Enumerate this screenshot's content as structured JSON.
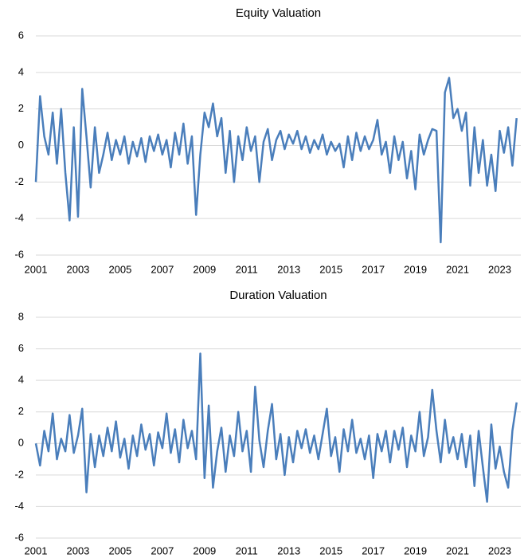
{
  "chart_data": [
    {
      "type": "line",
      "title": "Equity Valuation",
      "x": [
        2001.0,
        2001.2,
        2001.4,
        2001.6,
        2001.8,
        2002.0,
        2002.2,
        2002.4,
        2002.6,
        2002.8,
        2003.0,
        2003.2,
        2003.4,
        2003.6,
        2003.8,
        2004.0,
        2004.2,
        2004.4,
        2004.6,
        2004.8,
        2005.0,
        2005.2,
        2005.4,
        2005.6,
        2005.8,
        2006.0,
        2006.2,
        2006.4,
        2006.6,
        2006.8,
        2007.0,
        2007.2,
        2007.4,
        2007.6,
        2007.8,
        2008.0,
        2008.2,
        2008.4,
        2008.6,
        2008.8,
        2009.0,
        2009.2,
        2009.4,
        2009.6,
        2009.8,
        2010.0,
        2010.2,
        2010.4,
        2010.6,
        2010.8,
        2011.0,
        2011.2,
        2011.4,
        2011.6,
        2011.8,
        2012.0,
        2012.2,
        2012.4,
        2012.6,
        2012.8,
        2013.0,
        2013.2,
        2013.4,
        2013.6,
        2013.8,
        2014.0,
        2014.2,
        2014.4,
        2014.6,
        2014.8,
        2015.0,
        2015.2,
        2015.4,
        2015.6,
        2015.8,
        2016.0,
        2016.2,
        2016.4,
        2016.6,
        2016.8,
        2017.0,
        2017.2,
        2017.4,
        2017.6,
        2017.8,
        2018.0,
        2018.2,
        2018.4,
        2018.6,
        2018.8,
        2019.0,
        2019.2,
        2019.4,
        2019.6,
        2019.8,
        2020.0,
        2020.2,
        2020.4,
        2020.6,
        2020.8,
        2021.0,
        2021.2,
        2021.4,
        2021.6,
        2021.8,
        2022.0,
        2022.2,
        2022.4,
        2022.6,
        2022.8,
        2023.0,
        2023.2,
        2023.4,
        2023.6,
        2023.8
      ],
      "series": [
        {
          "color": "#4a7ebb",
          "values": [
            -2.0,
            2.7,
            0.5,
            -0.5,
            1.8,
            -1.0,
            2.0,
            -1.5,
            -4.1,
            1.0,
            -3.9,
            3.1,
            0.5,
            -2.3,
            1.0,
            -1.5,
            -0.5,
            0.7,
            -0.8,
            0.3,
            -0.5,
            0.5,
            -1.0,
            0.2,
            -0.6,
            0.4,
            -0.9,
            0.5,
            -0.3,
            0.6,
            -0.5,
            0.3,
            -1.2,
            0.7,
            -0.5,
            1.2,
            -1.0,
            0.5,
            -3.8,
            -0.5,
            1.8,
            1.0,
            2.3,
            0.5,
            1.5,
            -1.5,
            0.8,
            -2.0,
            0.5,
            -0.8,
            1.0,
            -0.3,
            0.5,
            -2.0,
            0.2,
            0.9,
            -0.8,
            0.3,
            0.8,
            -0.2,
            0.6,
            0.1,
            0.8,
            -0.2,
            0.5,
            -0.4,
            0.3,
            -0.2,
            0.6,
            -0.5,
            0.2,
            -0.3,
            0.1,
            -1.2,
            0.5,
            -0.8,
            0.7,
            -0.3,
            0.5,
            -0.2,
            0.3,
            1.4,
            -0.5,
            0.2,
            -1.5,
            0.5,
            -0.8,
            0.2,
            -1.8,
            -0.3,
            -2.4,
            0.6,
            -0.5,
            0.3,
            0.9,
            0.8,
            -5.3,
            2.9,
            3.7,
            1.5,
            2.0,
            0.8,
            1.8,
            -2.2,
            1.0,
            -1.5,
            0.3,
            -2.2,
            -0.5,
            -2.5,
            0.8,
            -0.4,
            1.0,
            -1.1,
            1.5
          ]
        }
      ],
      "xlim": [
        2001,
        2024
      ],
      "xticks": [
        2001,
        2003,
        2005,
        2007,
        2009,
        2011,
        2013,
        2015,
        2017,
        2019,
        2021,
        2023
      ],
      "ylim": [
        -6,
        6
      ],
      "yticks": [
        -6,
        -4,
        -2,
        0,
        2,
        4,
        6
      ],
      "grid": true
    },
    {
      "type": "line",
      "title": "Duration Valuation",
      "x": [
        2001.0,
        2001.2,
        2001.4,
        2001.6,
        2001.8,
        2002.0,
        2002.2,
        2002.4,
        2002.6,
        2002.8,
        2003.0,
        2003.2,
        2003.4,
        2003.6,
        2003.8,
        2004.0,
        2004.2,
        2004.4,
        2004.6,
        2004.8,
        2005.0,
        2005.2,
        2005.4,
        2005.6,
        2005.8,
        2006.0,
        2006.2,
        2006.4,
        2006.6,
        2006.8,
        2007.0,
        2007.2,
        2007.4,
        2007.6,
        2007.8,
        2008.0,
        2008.2,
        2008.4,
        2008.6,
        2008.8,
        2009.0,
        2009.2,
        2009.4,
        2009.6,
        2009.8,
        2010.0,
        2010.2,
        2010.4,
        2010.6,
        2010.8,
        2011.0,
        2011.2,
        2011.4,
        2011.6,
        2011.8,
        2012.0,
        2012.2,
        2012.4,
        2012.6,
        2012.8,
        2013.0,
        2013.2,
        2013.4,
        2013.6,
        2013.8,
        2014.0,
        2014.2,
        2014.4,
        2014.6,
        2014.8,
        2015.0,
        2015.2,
        2015.4,
        2015.6,
        2015.8,
        2016.0,
        2016.2,
        2016.4,
        2016.6,
        2016.8,
        2017.0,
        2017.2,
        2017.4,
        2017.6,
        2017.8,
        2018.0,
        2018.2,
        2018.4,
        2018.6,
        2018.8,
        2019.0,
        2019.2,
        2019.4,
        2019.6,
        2019.8,
        2020.0,
        2020.2,
        2020.4,
        2020.6,
        2020.8,
        2021.0,
        2021.2,
        2021.4,
        2021.6,
        2021.8,
        2022.0,
        2022.2,
        2022.4,
        2022.6,
        2022.8,
        2023.0,
        2023.2,
        2023.4,
        2023.6,
        2023.8
      ],
      "series": [
        {
          "color": "#4a7ebb",
          "values": [
            0.0,
            -1.4,
            0.8,
            -0.5,
            1.9,
            -1.0,
            0.3,
            -0.5,
            1.8,
            -0.6,
            0.5,
            2.2,
            -3.1,
            0.6,
            -1.5,
            0.5,
            -0.8,
            1.0,
            -0.5,
            1.4,
            -0.9,
            0.3,
            -1.6,
            0.5,
            -0.8,
            1.2,
            -0.4,
            0.6,
            -1.4,
            0.7,
            -0.3,
            1.9,
            -0.6,
            0.9,
            -1.2,
            1.5,
            -0.3,
            0.8,
            -1.0,
            5.7,
            -2.2,
            2.4,
            -2.8,
            -0.5,
            1.0,
            -1.8,
            0.5,
            -0.8,
            2.0,
            -0.5,
            0.8,
            -1.8,
            3.6,
            0.2,
            -1.5,
            0.8,
            2.5,
            -1.0,
            0.6,
            -2.0,
            0.4,
            -1.2,
            0.8,
            -0.3,
            0.9,
            -0.6,
            0.5,
            -1.0,
            0.6,
            2.2,
            -0.8,
            0.4,
            -1.8,
            0.9,
            -0.5,
            1.5,
            -0.6,
            0.3,
            -1.0,
            0.5,
            -2.2,
            0.6,
            -0.5,
            0.8,
            -1.2,
            0.8,
            -0.4,
            1.0,
            -1.5,
            0.5,
            -0.5,
            2.0,
            -0.8,
            0.4,
            3.4,
            0.8,
            -1.2,
            1.5,
            -0.6,
            0.4,
            -1.0,
            0.6,
            -1.5,
            0.5,
            -2.7,
            0.8,
            -1.5,
            -3.7,
            1.2,
            -1.6,
            -0.2,
            -1.8,
            -2.8,
            0.8,
            2.6
          ]
        }
      ],
      "xlim": [
        2001,
        2024
      ],
      "xticks": [
        2001,
        2003,
        2005,
        2007,
        2009,
        2011,
        2013,
        2015,
        2017,
        2019,
        2021,
        2023
      ],
      "ylim": [
        -6,
        8
      ],
      "yticks": [
        -6,
        -4,
        -2,
        0,
        2,
        4,
        6,
        8
      ],
      "grid": true
    }
  ]
}
